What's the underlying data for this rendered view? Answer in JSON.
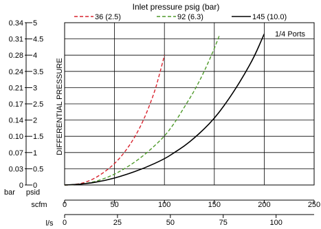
{
  "chart_data": {
    "type": "line",
    "title": "Inlet pressure psig (bar)",
    "ylabel": "DIFFERENTIAL PRESSURE",
    "annotation": "1/4 Ports",
    "x_unit_primary": "scfm",
    "x_unit_secondary": "l/s",
    "y_unit_primary": "psid",
    "y_unit_secondary": "bar",
    "xlim": [
      0,
      250
    ],
    "ylim": [
      0,
      5
    ],
    "grid": true,
    "legend_position": "top",
    "x_ticks_scfm": [
      "0",
      "50",
      "100",
      "150",
      "200",
      "250"
    ],
    "x_ticks_ls": [
      "0",
      "25",
      "50",
      "75",
      "100"
    ],
    "x_ticks_ls_values": [
      0,
      25,
      50,
      75,
      100
    ],
    "y_ticks_psid": [
      "0",
      "0.5",
      "1",
      "1.5",
      "2",
      "2.5",
      "3",
      "3.5",
      "4",
      "4.5",
      "5"
    ],
    "y_ticks_bar": [
      "0",
      "0.03",
      "0.07",
      "0.10",
      "0.14",
      "0.17",
      "0.21",
      "0.24",
      "0.28",
      "0.31",
      "0.34"
    ],
    "series": [
      {
        "name": "36 (2.5)",
        "color": "#d9232e",
        "dash": "dashed",
        "x": [
          0,
          10,
          20,
          30,
          40,
          50,
          60,
          70,
          80,
          90,
          95,
          100
        ],
        "y": [
          0,
          0.01,
          0.07,
          0.2,
          0.4,
          0.65,
          1.0,
          1.45,
          2.05,
          2.85,
          3.4,
          4.0
        ]
      },
      {
        "name": "92 (6.3)",
        "color": "#4e9a2a",
        "dash": "dashed",
        "x": [
          0,
          10,
          20,
          30,
          40,
          50,
          60,
          70,
          80,
          90,
          100,
          110,
          120,
          130,
          140,
          150,
          155
        ],
        "y": [
          0,
          0.01,
          0.04,
          0.1,
          0.2,
          0.33,
          0.5,
          0.7,
          0.93,
          1.2,
          1.5,
          1.9,
          2.4,
          2.9,
          3.5,
          4.2,
          4.6
        ]
      },
      {
        "name": "145 (10.0)",
        "color": "#000000",
        "dash": "solid",
        "x": [
          0,
          20,
          40,
          60,
          80,
          100,
          110,
          120,
          130,
          140,
          150,
          160,
          170,
          180,
          190,
          200
        ],
        "y": [
          0,
          0.03,
          0.13,
          0.3,
          0.52,
          0.8,
          1.0,
          1.2,
          1.45,
          1.73,
          2.05,
          2.45,
          2.9,
          3.4,
          3.95,
          4.65
        ]
      }
    ]
  }
}
